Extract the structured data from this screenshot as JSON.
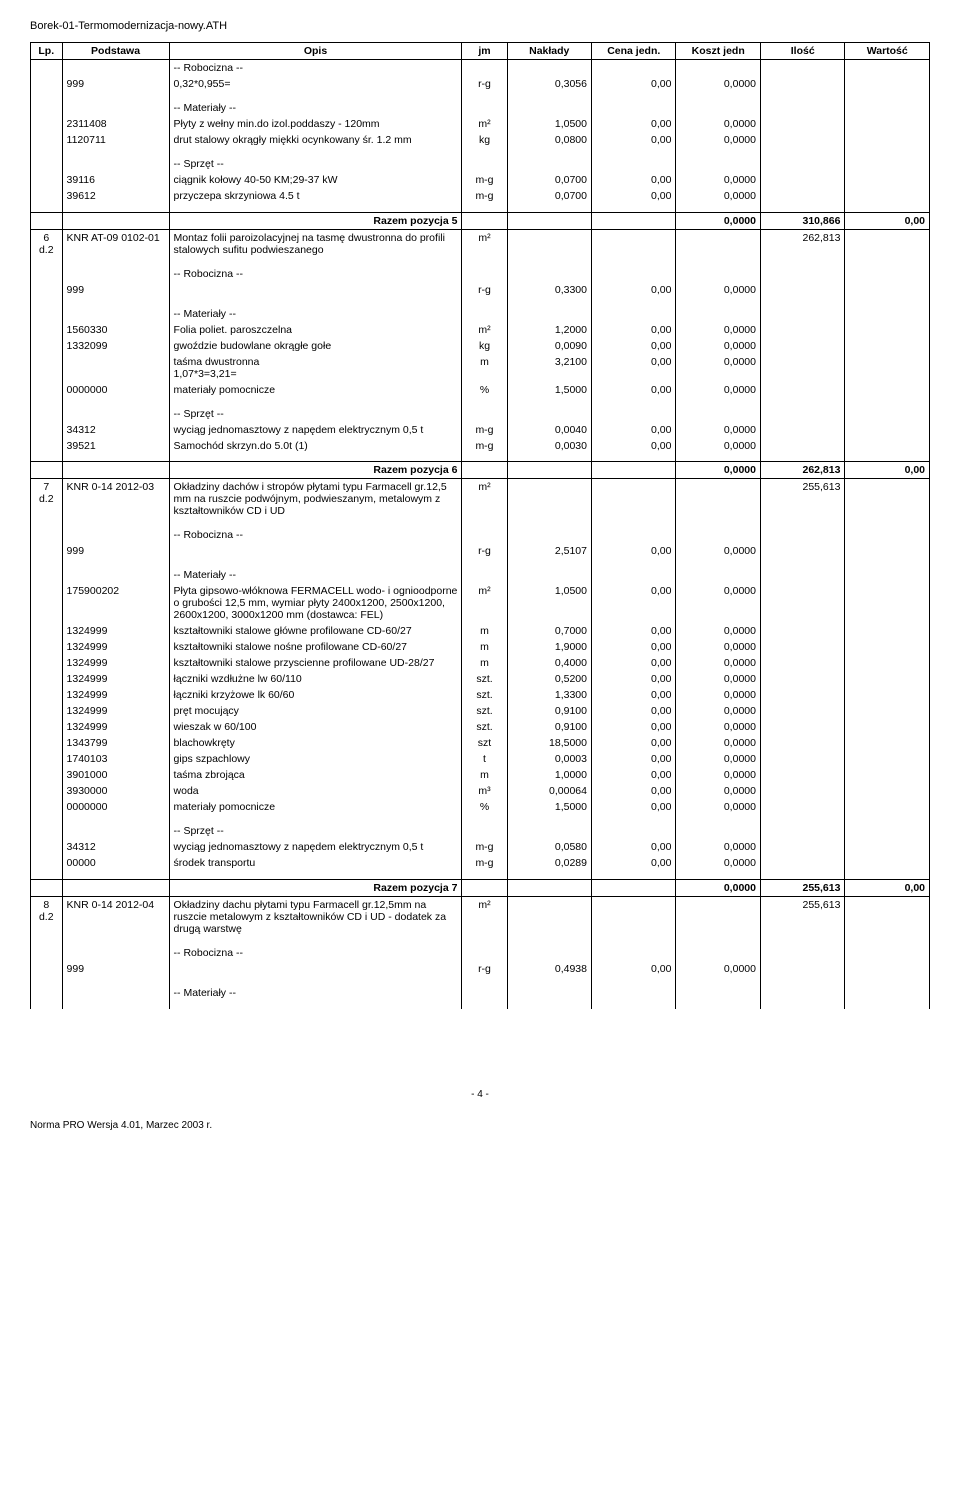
{
  "doc_title": "Borek-01-Termomodernizacja-nowy.ATH",
  "headers": {
    "lp": "Lp.",
    "podstawa": "Podstawa",
    "opis": "Opis",
    "jm": "jm",
    "naklady": "Nakłady",
    "cena": "Cena jedn.",
    "koszt": "Koszt jedn",
    "ilosc": "Ilość",
    "wartosc": "Wartość"
  },
  "sections": [
    {
      "rob": "-- Robocizna --",
      "rob_rows": [
        {
          "code": "999",
          "opis": "0,32*0,955=",
          "jm": "r-g",
          "naklady": "0,3056",
          "cena": "0,00",
          "koszt": "0,0000"
        }
      ],
      "mat": "-- Materiały --",
      "mat_rows": [
        {
          "code": "2311408",
          "opis": "Płyty z wełny min.do izol.poddaszy - 120mm",
          "jm": "m2",
          "naklady": "1,0500",
          "cena": "0,00",
          "koszt": "0,0000"
        },
        {
          "code": "1120711",
          "opis": "drut stalowy okrągły miękki ocynkowany śr. 1.2 mm",
          "jm": "kg",
          "naklady": "0,0800",
          "cena": "0,00",
          "koszt": "0,0000"
        }
      ],
      "spr": "-- Sprzęt --",
      "spr_rows": [
        {
          "code": "39116",
          "opis": "ciągnik kołowy 40-50 KM;29-37 kW",
          "jm": "m-g",
          "naklady": "0,0700",
          "cena": "0,00",
          "koszt": "0,0000"
        },
        {
          "code": "39612",
          "opis": "przyczepa skrzyniowa 4.5 t",
          "jm": "m-g",
          "naklady": "0,0700",
          "cena": "0,00",
          "koszt": "0,0000"
        }
      ],
      "razem": {
        "label": "Razem pozycja 5",
        "koszt": "0,0000",
        "ilosc": "310,866",
        "wartosc": "0,00"
      }
    },
    {
      "header": {
        "lp": "6",
        "d": "d.2",
        "podstawa": "KNR AT-09 0102-01",
        "opis": "Montaz folii paroizolacyjnej na tasmę dwustronna do profili stalowych sufitu podwieszanego",
        "jm": "m2",
        "ilosc": "262,813"
      },
      "rob": "-- Robocizna --",
      "rob_rows": [
        {
          "code": "999",
          "opis": "",
          "jm": "r-g",
          "naklady": "0,3300",
          "cena": "0,00",
          "koszt": "0,0000"
        }
      ],
      "mat": "-- Materiały --",
      "mat_rows": [
        {
          "code": "1560330",
          "opis": "Folia poliet. paroszczelna",
          "jm": "m2",
          "naklady": "1,2000",
          "cena": "0,00",
          "koszt": "0,0000"
        },
        {
          "code": "1332099",
          "opis": "gwoździe budowlane okrągłe gołe",
          "jm": "kg",
          "naklady": "0,0090",
          "cena": "0,00",
          "koszt": "0,0000"
        },
        {
          "code": "",
          "opis": "taśma dwustronna\n1,07*3=3,21=",
          "jm": "m",
          "naklady": "3,2100",
          "cena": "0,00",
          "koszt": "0,0000"
        },
        {
          "code": "0000000",
          "opis": "materiały pomocnicze",
          "jm": "%",
          "naklady": "1,5000",
          "cena": "0,00",
          "koszt": "0,0000"
        }
      ],
      "spr": "-- Sprzęt --",
      "spr_rows": [
        {
          "code": "34312",
          "opis": "wyciąg jednomasztowy z napędem elektrycznym 0,5 t",
          "jm": "m-g",
          "naklady": "0,0040",
          "cena": "0,00",
          "koszt": "0,0000"
        },
        {
          "code": "39521",
          "opis": "Samochód skrzyn.do 5.0t (1)",
          "jm": "m-g",
          "naklady": "0,0030",
          "cena": "0,00",
          "koszt": "0,0000"
        }
      ],
      "razem": {
        "label": "Razem pozycja 6",
        "koszt": "0,0000",
        "ilosc": "262,813",
        "wartosc": "0,00"
      }
    },
    {
      "header": {
        "lp": "7",
        "d": "d.2",
        "podstawa": "KNR 0-14 2012-03",
        "opis": "Okładziny dachów i stropów płytami typu Farmacell gr.12,5 mm na ruszcie podwójnym, podwieszanym, metalowym z kształtowników CD i UD",
        "jm": "m2",
        "ilosc": "255,613"
      },
      "rob": "-- Robocizna --",
      "rob_rows": [
        {
          "code": "999",
          "opis": "",
          "jm": "r-g",
          "naklady": "2,5107",
          "cena": "0,00",
          "koszt": "0,0000"
        }
      ],
      "mat": "-- Materiały --",
      "mat_rows": [
        {
          "code": "175900202",
          "opis": "Płyta gipsowo-włóknowa FERMACELL wodo- i ognioodporne o grubości 12,5 mm, wymiar płyty 2400x1200, 2500x1200, 2600x1200, 3000x1200 mm (dostawca: FEL)",
          "jm": "m2",
          "naklady": "1,0500",
          "cena": "0,00",
          "koszt": "0,0000"
        },
        {
          "code": "1324999",
          "opis": "kształtowniki stalowe główne profilowane CD-60/27",
          "jm": "m",
          "naklady": "0,7000",
          "cena": "0,00",
          "koszt": "0,0000"
        },
        {
          "code": "1324999",
          "opis": "kształtowniki stalowe nośne profilowane CD-60/27",
          "jm": "m",
          "naklady": "1,9000",
          "cena": "0,00",
          "koszt": "0,0000"
        },
        {
          "code": "1324999",
          "opis": "kształtowniki stalowe przyscienne profilowane UD-28/27",
          "jm": "m",
          "naklady": "0,4000",
          "cena": "0,00",
          "koszt": "0,0000"
        },
        {
          "code": "1324999",
          "opis": "łączniki wzdłużne lw 60/110",
          "jm": "szt.",
          "naklady": "0,5200",
          "cena": "0,00",
          "koszt": "0,0000"
        },
        {
          "code": "1324999",
          "opis": "łączniki krzyżowe lk 60/60",
          "jm": "szt.",
          "naklady": "1,3300",
          "cena": "0,00",
          "koszt": "0,0000"
        },
        {
          "code": "1324999",
          "opis": "pręt mocujący",
          "jm": "szt.",
          "naklady": "0,9100",
          "cena": "0,00",
          "koszt": "0,0000"
        },
        {
          "code": "1324999",
          "opis": "wieszak w 60/100",
          "jm": "szt.",
          "naklady": "0,9100",
          "cena": "0,00",
          "koszt": "0,0000"
        },
        {
          "code": "1343799",
          "opis": "blachowkręty",
          "jm": "szt",
          "naklady": "18,5000",
          "cena": "0,00",
          "koszt": "0,0000"
        },
        {
          "code": "1740103",
          "opis": "gips szpachlowy",
          "jm": "t",
          "naklady": "0,0003",
          "cena": "0,00",
          "koszt": "0,0000"
        },
        {
          "code": "3901000",
          "opis": "taśma zbrojąca",
          "jm": "m",
          "naklady": "1,0000",
          "cena": "0,00",
          "koszt": "0,0000"
        },
        {
          "code": "3930000",
          "opis": "woda",
          "jm": "m3",
          "naklady": "0,00064",
          "cena": "0,00",
          "koszt": "0,0000"
        },
        {
          "code": "0000000",
          "opis": "materiały pomocnicze",
          "jm": "%",
          "naklady": "1,5000",
          "cena": "0,00",
          "koszt": "0,0000"
        }
      ],
      "spr": "-- Sprzęt --",
      "spr_rows": [
        {
          "code": "34312",
          "opis": "wyciąg jednomasztowy z napędem elektrycznym 0,5 t",
          "jm": "m-g",
          "naklady": "0,0580",
          "cena": "0,00",
          "koszt": "0,0000"
        },
        {
          "code": "00000",
          "opis": "środek transportu",
          "jm": "m-g",
          "naklady": "0,0289",
          "cena": "0,00",
          "koszt": "0,0000"
        }
      ],
      "razem": {
        "label": "Razem pozycja 7",
        "koszt": "0,0000",
        "ilosc": "255,613",
        "wartosc": "0,00"
      }
    },
    {
      "header": {
        "lp": "8",
        "d": "d.2",
        "podstawa": "KNR 0-14 2012-04",
        "opis": "Okładziny dachu płytami typu Farmacell gr.12,5mm na ruszcie metalowym z kształtowników CD i UD - dodatek za drugą warstwę",
        "jm": "m2",
        "ilosc": "255,613"
      },
      "rob": "-- Robocizna --",
      "rob_rows": [
        {
          "code": "999",
          "opis": "",
          "jm": "r-g",
          "naklady": "0,4938",
          "cena": "0,00",
          "koszt": "0,0000"
        }
      ],
      "mat": "-- Materiały --",
      "mat_rows": []
    }
  ],
  "page_number": "- 4 -",
  "footer_text": "Norma PRO Wersja 4.01, Marzec 2003 r."
}
